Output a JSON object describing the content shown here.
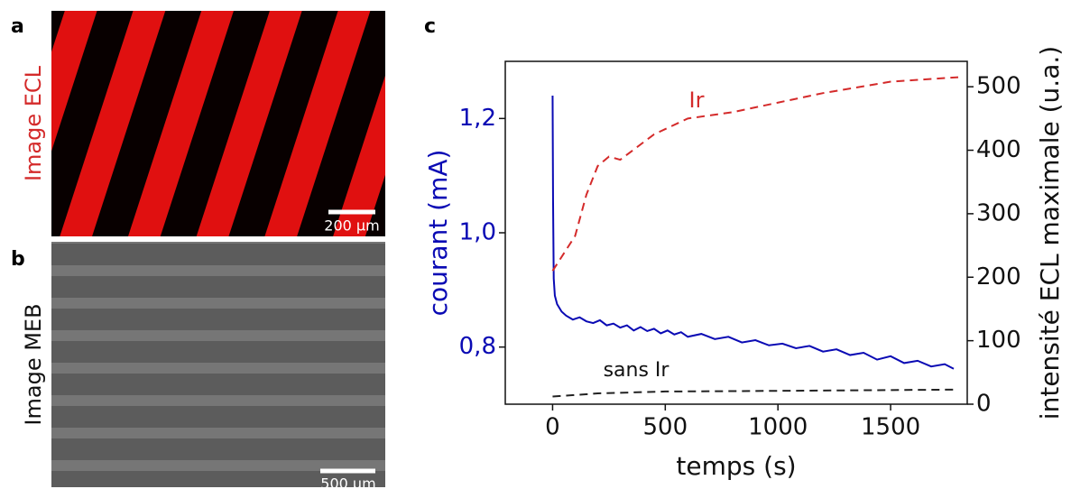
{
  "panels": {
    "a": {
      "label": "a",
      "title": "Image ECL",
      "scale": "200 µm"
    },
    "b": {
      "label": "b",
      "title": "Image MEB",
      "scale": "500 µm"
    },
    "c": {
      "label": "c"
    }
  },
  "chart_data": {
    "type": "line",
    "x_label": "temps (s)",
    "y_label": "courant (mA)",
    "y2_label": "intensité ECL maximale (u.a.)",
    "xlim": [
      -210,
      1840
    ],
    "xticks": [
      0,
      500,
      1000,
      1500
    ],
    "ylim": [
      0.7,
      1.3
    ],
    "yticks": [
      {
        "value": 0.8,
        "label": "0,8"
      },
      {
        "value": 1.0,
        "label": "1,0"
      },
      {
        "value": 1.2,
        "label": "1,2"
      }
    ],
    "y2lim": [
      0,
      540
    ],
    "y2ticks": [
      0,
      100,
      200,
      300,
      400,
      500
    ],
    "series": [
      {
        "color": "#0a0ab4",
        "axis": "y",
        "dash": false,
        "x": [
          0,
          2,
          5,
          10,
          20,
          40,
          60,
          90,
          120,
          150,
          180,
          210,
          240,
          270,
          300,
          330,
          360,
          390,
          420,
          450,
          480,
          510,
          540,
          570,
          600,
          660,
          720,
          780,
          840,
          900,
          960,
          1020,
          1080,
          1140,
          1200,
          1260,
          1320,
          1380,
          1440,
          1500,
          1560,
          1620,
          1680,
          1740,
          1780
        ],
        "values": [
          1.24,
          1.06,
          0.92,
          0.89,
          0.875,
          0.862,
          0.855,
          0.848,
          0.852,
          0.845,
          0.842,
          0.847,
          0.838,
          0.841,
          0.834,
          0.838,
          0.829,
          0.835,
          0.828,
          0.832,
          0.824,
          0.829,
          0.822,
          0.826,
          0.818,
          0.823,
          0.814,
          0.818,
          0.808,
          0.812,
          0.803,
          0.806,
          0.798,
          0.802,
          0.792,
          0.796,
          0.786,
          0.79,
          0.778,
          0.784,
          0.772,
          0.776,
          0.766,
          0.77,
          0.762
        ]
      },
      {
        "name": "Ir",
        "color": "#d42a2a",
        "axis": "y2",
        "dash": true,
        "x": [
          0,
          100,
          150,
          200,
          250,
          300,
          450,
          600,
          800,
          1000,
          1200,
          1500,
          1800
        ],
        "values": [
          210,
          265,
          330,
          375,
          390,
          385,
          425,
          450,
          460,
          475,
          490,
          508,
          515
        ]
      },
      {
        "name": "sans Ir",
        "color": "#222222",
        "axis": "y2",
        "dash": true,
        "x": [
          0,
          200,
          500,
          1000,
          1800
        ],
        "values": [
          12,
          17,
          20,
          21,
          23
        ]
      }
    ]
  }
}
